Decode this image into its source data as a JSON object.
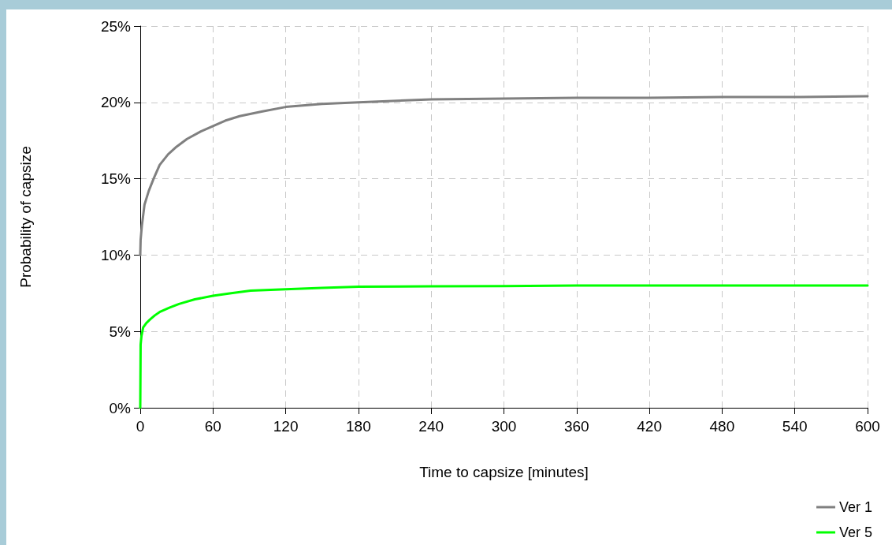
{
  "chart_data": {
    "type": "line",
    "xlabel": "Time to capsize [minutes]",
    "ylabel": "Probability of capsize",
    "xlim": [
      0,
      600
    ],
    "xticks": [
      0,
      60,
      120,
      180,
      240,
      300,
      360,
      420,
      480,
      540,
      600
    ],
    "ylim": [
      0,
      25
    ],
    "yticks": [
      {
        "value": 0,
        "label": "0%"
      },
      {
        "value": 5,
        "label": "5%"
      },
      {
        "value": 10,
        "label": "10%"
      },
      {
        "value": 15,
        "label": "15%"
      },
      {
        "value": 20,
        "label": "20%"
      },
      {
        "value": 25,
        "label": "25%"
      }
    ],
    "grid": true,
    "legend": "bottom right",
    "marker": "none",
    "line_style": "solid",
    "series": [
      {
        "name": "Ver 1",
        "color": "#808080",
        "x": [
          0,
          0.3,
          1.3,
          3.5,
          7,
          11,
          16,
          23,
          30,
          38.5,
          50,
          60,
          70,
          82,
          100,
          120,
          150,
          180,
          240,
          300,
          360,
          420,
          480,
          540,
          600
        ],
        "values": [
          10,
          11,
          11.9,
          13.3,
          14.2,
          15,
          15.9,
          16.6,
          17.1,
          17.6,
          18.1,
          18.45,
          18.8,
          19.1,
          19.4,
          19.7,
          19.9,
          20.0,
          20.2,
          20.25,
          20.3,
          20.3,
          20.35,
          20.35,
          20.4
        ]
      },
      {
        "name": "Ver 5",
        "color": "#00ff00",
        "x": [
          0,
          0.3,
          1,
          2.4,
          5,
          8,
          12,
          16.6,
          24,
          32,
          45,
          60,
          75,
          91,
          120,
          150,
          180,
          240,
          300,
          360,
          420,
          480,
          540,
          600
        ],
        "values": [
          0,
          4.14,
          4.7,
          5.26,
          5.55,
          5.78,
          6.05,
          6.3,
          6.55,
          6.8,
          7.1,
          7.33,
          7.5,
          7.67,
          7.76,
          7.85,
          7.93,
          7.95,
          7.97,
          8.0,
          8.0,
          8.0,
          8.0,
          8.0
        ]
      }
    ]
  }
}
